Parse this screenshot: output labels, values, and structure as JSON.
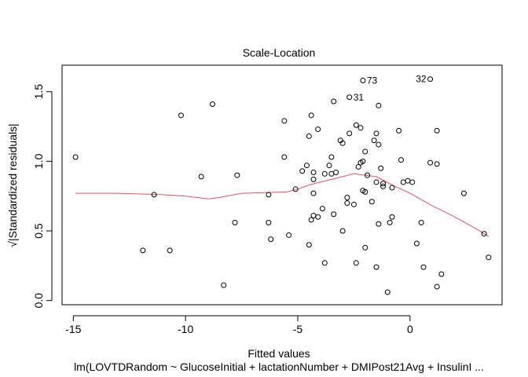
{
  "chart_data": {
    "type": "scatter",
    "title": "Scale-Location",
    "xlabel": "Fitted values",
    "subtitle": "lm(LOVTDRandom ~ GlucoseInitial + lactationNumber + DMIPost21Avg + InsulinI ...",
    "ylabel": "√|Standardized residuals|",
    "xlim": [
      -15.5,
      4.1
    ],
    "ylim": [
      -0.03,
      1.69
    ],
    "x_ticks": [
      -15,
      -10,
      -5,
      0
    ],
    "x_tick_labels": [
      "-15",
      "-10",
      "-5",
      "0"
    ],
    "y_ticks": [
      0.0,
      0.5,
      1.0,
      1.5
    ],
    "y_tick_labels": [
      "0.0",
      "0.5",
      "1.0",
      "1.5"
    ],
    "grid": false,
    "colors": {
      "points": "#000000",
      "smooth": "#df536b",
      "axes": "#000000"
    },
    "points": [
      {
        "x": -14.9,
        "y": 1.03
      },
      {
        "x": -11.9,
        "y": 0.36
      },
      {
        "x": -11.4,
        "y": 0.76
      },
      {
        "x": -10.7,
        "y": 0.36
      },
      {
        "x": -10.2,
        "y": 1.33
      },
      {
        "x": -9.3,
        "y": 0.89
      },
      {
        "x": -8.8,
        "y": 1.41
      },
      {
        "x": -8.3,
        "y": 0.11
      },
      {
        "x": -7.7,
        "y": 0.9
      },
      {
        "x": -7.8,
        "y": 0.56
      },
      {
        "x": -6.3,
        "y": 0.76
      },
      {
        "x": -6.3,
        "y": 0.56
      },
      {
        "x": -6.2,
        "y": 0.44
      },
      {
        "x": -5.6,
        "y": 1.29
      },
      {
        "x": -5.6,
        "y": 1.03
      },
      {
        "x": -5.4,
        "y": 0.47
      },
      {
        "x": -5.1,
        "y": 0.8
      },
      {
        "x": -4.8,
        "y": 0.93
      },
      {
        "x": -4.6,
        "y": 0.97
      },
      {
        "x": -4.5,
        "y": 1.18
      },
      {
        "x": -4.4,
        "y": 1.33
      },
      {
        "x": -4.5,
        "y": 0.4
      },
      {
        "x": -4.4,
        "y": 0.58
      },
      {
        "x": -4.3,
        "y": 0.61
      },
      {
        "x": -4.3,
        "y": 0.77
      },
      {
        "x": -4.3,
        "y": 0.87
      },
      {
        "x": -4.3,
        "y": 0.92
      },
      {
        "x": -4.1,
        "y": 1.23
      },
      {
        "x": -4.1,
        "y": 0.6
      },
      {
        "x": -3.9,
        "y": 0.66
      },
      {
        "x": -3.8,
        "y": 0.91
      },
      {
        "x": -3.8,
        "y": 0.27
      },
      {
        "x": -3.6,
        "y": 0.97
      },
      {
        "x": -3.5,
        "y": 0.91
      },
      {
        "x": -3.5,
        "y": 1.03
      },
      {
        "x": -3.4,
        "y": 1.43
      },
      {
        "x": -3.4,
        "y": 0.62
      },
      {
        "x": -3.3,
        "y": 0.92
      },
      {
        "x": -3.1,
        "y": 1.15
      },
      {
        "x": -3.0,
        "y": 0.5
      },
      {
        "x": -3.0,
        "y": 1.13
      },
      {
        "x": -2.8,
        "y": 0.74
      },
      {
        "x": -2.8,
        "y": 0.7
      },
      {
        "x": -2.7,
        "y": 1.2
      },
      {
        "x": -2.7,
        "y": 1.46
      },
      {
        "x": -2.5,
        "y": 0.69
      },
      {
        "x": -2.4,
        "y": 1.26
      },
      {
        "x": -2.4,
        "y": 0.27
      },
      {
        "x": -2.3,
        "y": 0.96
      },
      {
        "x": -2.2,
        "y": 1.24
      },
      {
        "x": -2.2,
        "y": 0.99
      },
      {
        "x": -2.1,
        "y": 1.0
      },
      {
        "x": -2.1,
        "y": 0.79
      },
      {
        "x": -2.1,
        "y": 1.58
      },
      {
        "x": -2.0,
        "y": 1.07
      },
      {
        "x": -2.0,
        "y": 0.38
      },
      {
        "x": -2.0,
        "y": 0.78
      },
      {
        "x": -1.9,
        "y": 0.9
      },
      {
        "x": -1.7,
        "y": 0.71
      },
      {
        "x": -1.6,
        "y": 1.15
      },
      {
        "x": -1.5,
        "y": 0.85
      },
      {
        "x": -1.5,
        "y": 1.2
      },
      {
        "x": -1.4,
        "y": 1.4
      },
      {
        "x": -1.4,
        "y": 0.55
      },
      {
        "x": -1.5,
        "y": 0.24
      },
      {
        "x": -1.4,
        "y": 1.12
      },
      {
        "x": -1.3,
        "y": 0.95
      },
      {
        "x": -1.2,
        "y": 0.82
      },
      {
        "x": -1.2,
        "y": 0.84
      },
      {
        "x": -1.0,
        "y": 0.06
      },
      {
        "x": -0.9,
        "y": 0.56
      },
      {
        "x": -0.8,
        "y": 0.6
      },
      {
        "x": -0.8,
        "y": 0.81
      },
      {
        "x": -0.5,
        "y": 1.22
      },
      {
        "x": -0.4,
        "y": 1.01
      },
      {
        "x": -0.3,
        "y": 0.85
      },
      {
        "x": -0.1,
        "y": 0.86
      },
      {
        "x": 0.1,
        "y": 0.85
      },
      {
        "x": 0.3,
        "y": 0.41
      },
      {
        "x": 0.5,
        "y": 0.56
      },
      {
        "x": 0.6,
        "y": 0.24
      },
      {
        "x": 0.9,
        "y": 0.99
      },
      {
        "x": 0.9,
        "y": 1.59
      },
      {
        "x": 1.2,
        "y": 0.98
      },
      {
        "x": 1.2,
        "y": 1.22
      },
      {
        "x": 1.2,
        "y": 0.1
      },
      {
        "x": 1.4,
        "y": 0.19
      },
      {
        "x": 2.4,
        "y": 0.77
      },
      {
        "x": 3.3,
        "y": 0.48
      },
      {
        "x": 3.5,
        "y": 0.31
      }
    ],
    "point_labels": [
      {
        "text": "73",
        "x": -2.1,
        "y": 1.58
      },
      {
        "text": "31",
        "x": -2.7,
        "y": 1.46
      },
      {
        "text": "32",
        "x": 0.9,
        "y": 1.59
      }
    ],
    "smooth_line": [
      {
        "x": -14.9,
        "y": 0.77
      },
      {
        "x": -13.0,
        "y": 0.77
      },
      {
        "x": -11.0,
        "y": 0.76
      },
      {
        "x": -10.0,
        "y": 0.75
      },
      {
        "x": -9.0,
        "y": 0.73
      },
      {
        "x": -8.5,
        "y": 0.74
      },
      {
        "x": -7.5,
        "y": 0.77
      },
      {
        "x": -6.5,
        "y": 0.775
      },
      {
        "x": -5.5,
        "y": 0.78
      },
      {
        "x": -5.0,
        "y": 0.8
      },
      {
        "x": -4.5,
        "y": 0.83
      },
      {
        "x": -3.5,
        "y": 0.87
      },
      {
        "x": -2.5,
        "y": 0.91
      },
      {
        "x": -1.5,
        "y": 0.89
      },
      {
        "x": -0.8,
        "y": 0.83
      },
      {
        "x": 0.0,
        "y": 0.77
      },
      {
        "x": 1.0,
        "y": 0.68
      },
      {
        "x": 2.0,
        "y": 0.6
      },
      {
        "x": 3.0,
        "y": 0.51
      },
      {
        "x": 3.5,
        "y": 0.46
      }
    ]
  }
}
